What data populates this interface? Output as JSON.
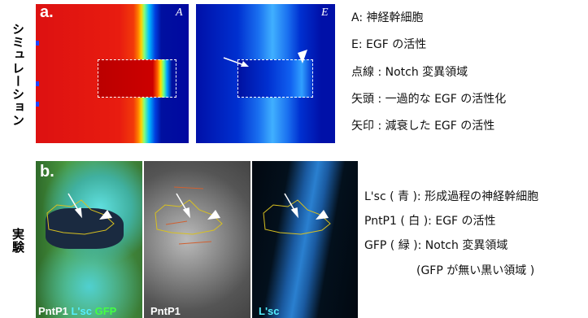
{
  "panel_a": {
    "label": "a.",
    "row_label": "シミュレーション",
    "tags": [
      "A",
      "E"
    ],
    "legend": [
      "A: 神経幹細胞",
      "E: EGF の活性",
      "点線 : Notch 変異領域",
      "矢頭 : 一過的な EGF の活性化",
      "矢印 : 減衰した EGF の活性"
    ]
  },
  "panel_b": {
    "label": "b.",
    "row_label": "実験",
    "channels": [
      [
        "PntP1",
        "L'sc",
        "GFP"
      ],
      [
        "PntP1"
      ],
      [
        "L'sc"
      ]
    ],
    "legend": [
      "L'sc ( 青 ): 形成過程の神経幹細胞",
      "PntP1 ( 白 ): EGF の活性",
      "GFP ( 緑 ): Notch 変異領域",
      "(GFP が無い黒い領域 )"
    ]
  }
}
